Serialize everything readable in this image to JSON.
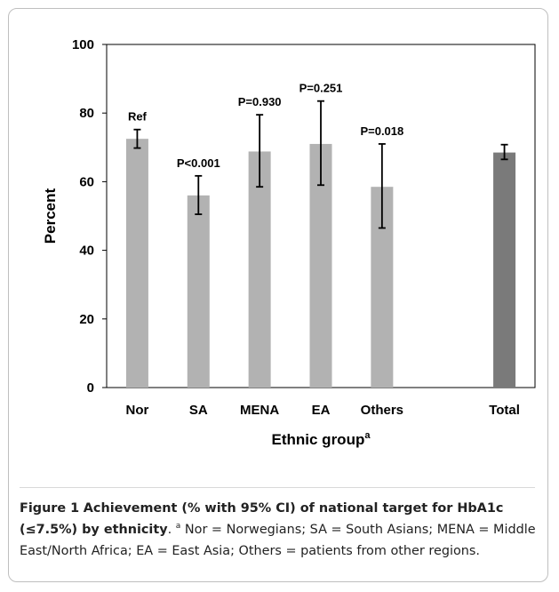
{
  "chart_data": {
    "type": "bar",
    "ylabel": "Percent",
    "xlabel": "Ethnic group",
    "xlabel_superscript": "a",
    "ylim": [
      0,
      100
    ],
    "yticks": [
      0,
      20,
      40,
      60,
      80,
      100
    ],
    "grid": false,
    "categories": [
      "Nor",
      "SA",
      "MENA",
      "EA",
      "Others",
      "",
      "Total"
    ],
    "values": [
      72.5,
      56,
      68.8,
      71,
      58.5,
      null,
      68.5
    ],
    "ci_low": [
      69.8,
      50.5,
      58.5,
      59,
      46.5,
      null,
      66.5
    ],
    "ci_high": [
      75.2,
      61.7,
      79.5,
      83.5,
      71,
      null,
      70.8
    ],
    "p_labels": [
      "Ref",
      "P<0.001",
      "P=0.930",
      "P=0.251",
      "P=0.018",
      "",
      ""
    ],
    "colors": [
      "#b2b2b2",
      "#b2b2b2",
      "#b2b2b2",
      "#b2b2b2",
      "#b2b2b2",
      "#b2b2b2",
      "#7a7a7a"
    ]
  },
  "caption": {
    "label": "Figure 1",
    "title": "Achievement (% with 95% CI) of national target for HbA1c (≤7.5%) by ethnicity",
    "sup": "a",
    "text": "Nor = Norwegians; SA = South Asians; MENA = Middle East/North Africa; EA = East Asia; Others = patients from other regions."
  }
}
